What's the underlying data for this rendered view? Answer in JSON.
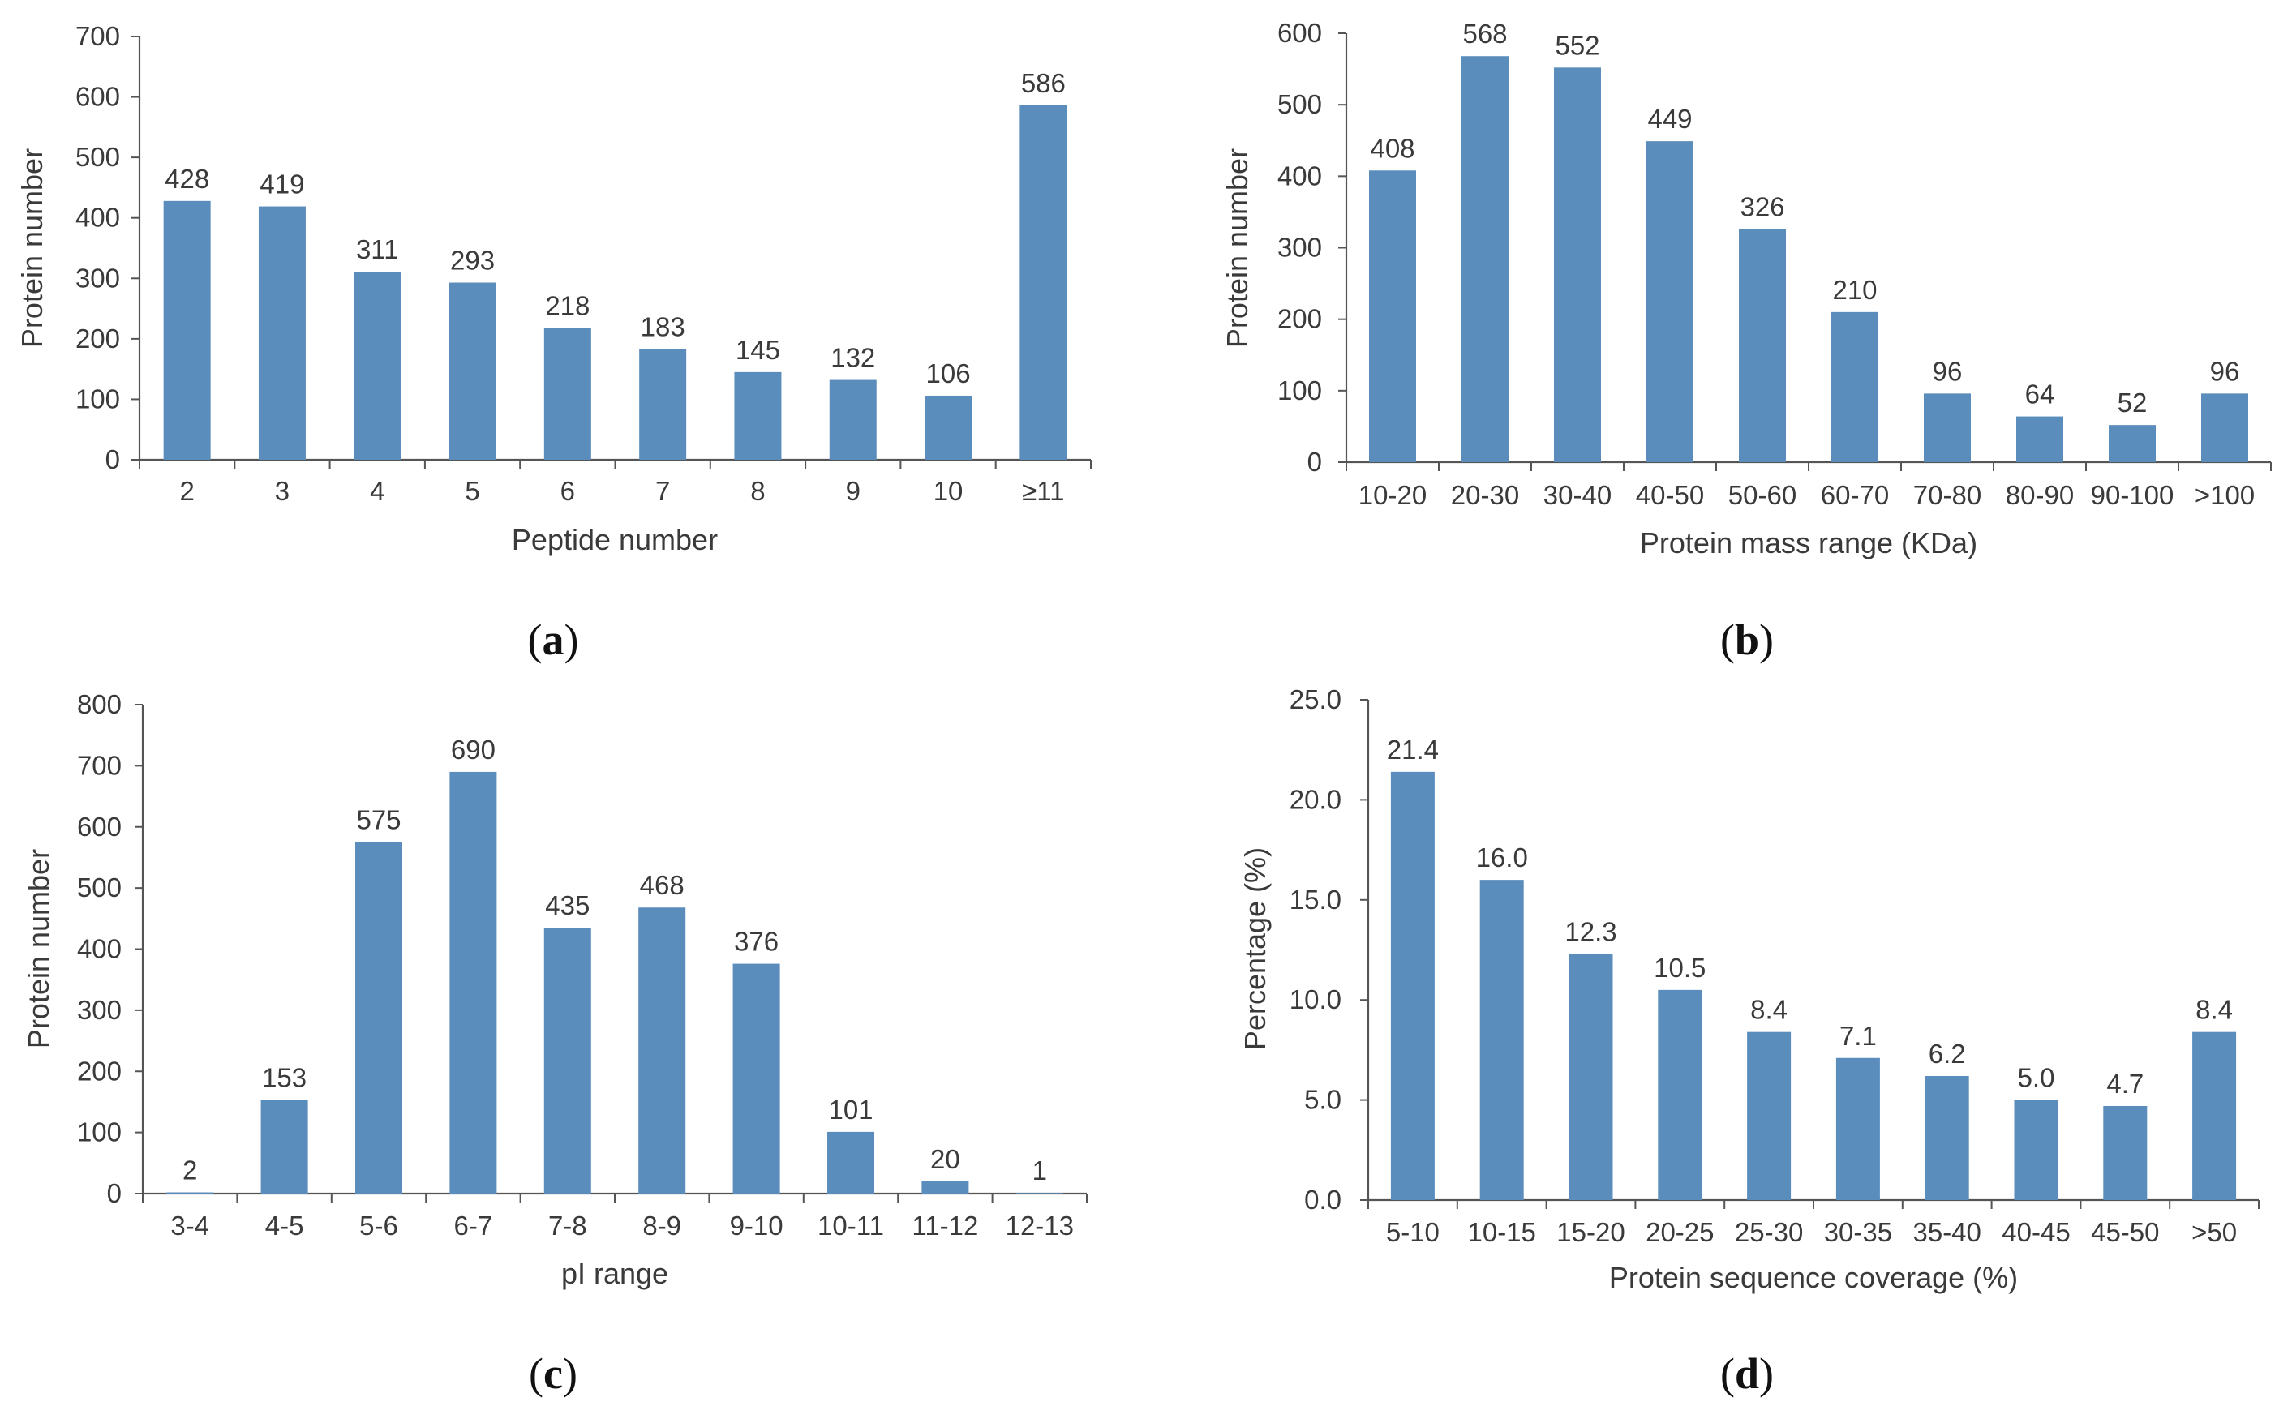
{
  "figure": {
    "bar_color": "#5b8dbc",
    "axis_color": "#555555",
    "text_color": "#3a3a3a"
  },
  "chart_data": [
    {
      "panel": "a",
      "type": "bar",
      "categories": [
        "2",
        "3",
        "4",
        "5",
        "6",
        "7",
        "8",
        "9",
        "10",
        "≥11"
      ],
      "values": [
        428,
        419,
        311,
        293,
        218,
        183,
        145,
        132,
        106,
        586
      ],
      "data_labels": [
        "428",
        "419",
        "311",
        "293",
        "218",
        "183",
        "145",
        "132",
        "106",
        "586"
      ],
      "xlabel": "Peptide number",
      "ylabel": "Protein number",
      "ylim": [
        0,
        700
      ],
      "yticks": [
        0,
        100,
        200,
        300,
        400,
        500,
        600,
        700
      ],
      "ytick_labels": [
        "0",
        "100",
        "200",
        "300",
        "400",
        "500",
        "600",
        "700"
      ],
      "grid": false
    },
    {
      "panel": "b",
      "type": "bar",
      "categories": [
        "10-20",
        "20-30",
        "30-40",
        "40-50",
        "50-60",
        "60-70",
        "70-80",
        "80-90",
        "90-100",
        ">100"
      ],
      "values": [
        408,
        568,
        552,
        449,
        326,
        210,
        96,
        64,
        52,
        96
      ],
      "data_labels": [
        "408",
        "568",
        "552",
        "449",
        "326",
        "210",
        "96",
        "64",
        "52",
        "96"
      ],
      "xlabel": "Protein mass range (KDa)",
      "ylabel": "Protein number",
      "ylim": [
        0,
        600
      ],
      "yticks": [
        0,
        100,
        200,
        300,
        400,
        500,
        600
      ],
      "ytick_labels": [
        "0",
        "100",
        "200",
        "300",
        "400",
        "500",
        "600"
      ],
      "grid": false
    },
    {
      "panel": "c",
      "type": "bar",
      "categories": [
        "3-4",
        "4-5",
        "5-6",
        "6-7",
        "7-8",
        "8-9",
        "9-10",
        "10-11",
        "11-12",
        "12-13"
      ],
      "values": [
        2,
        153,
        575,
        690,
        435,
        468,
        376,
        101,
        20,
        1
      ],
      "data_labels": [
        "2",
        "153",
        "575",
        "690",
        "435",
        "468",
        "376",
        "101",
        "20",
        "1"
      ],
      "xlabel": "pI range",
      "ylabel": "Protein number",
      "ylim": [
        0,
        800
      ],
      "yticks": [
        0,
        100,
        200,
        300,
        400,
        500,
        600,
        700,
        800
      ],
      "ytick_labels": [
        "0",
        "100",
        "200",
        "300",
        "400",
        "500",
        "600",
        "700",
        "800"
      ],
      "grid": false
    },
    {
      "panel": "d",
      "type": "bar",
      "categories": [
        "5-10",
        "10-15",
        "15-20",
        "20-25",
        "25-30",
        "30-35",
        "35-40",
        "40-45",
        "45-50",
        ">50"
      ],
      "values": [
        21.4,
        16.0,
        12.3,
        10.5,
        8.4,
        7.1,
        6.2,
        5.0,
        4.7,
        8.4
      ],
      "data_labels": [
        "21.4",
        "16.0",
        "12.3",
        "10.5",
        "8.4",
        "7.1",
        "6.2",
        "5.0",
        "4.7",
        "8.4"
      ],
      "xlabel": "Protein sequence coverage (%)",
      "ylabel": "Percentage (%)",
      "ylim": [
        0,
        25
      ],
      "yticks": [
        0,
        5,
        10,
        15,
        20,
        25
      ],
      "ytick_labels": [
        "0.0",
        "5.0",
        "10.0",
        "15.0",
        "20.0",
        "25.0"
      ],
      "grid": false
    }
  ],
  "panel_labels": [
    {
      "open": "(",
      "letter": "a",
      "close": ")"
    },
    {
      "open": "(",
      "letter": "b",
      "close": ")"
    },
    {
      "open": "(",
      "letter": "c",
      "close": ")"
    },
    {
      "open": "(",
      "letter": "d",
      "close": ")"
    }
  ]
}
